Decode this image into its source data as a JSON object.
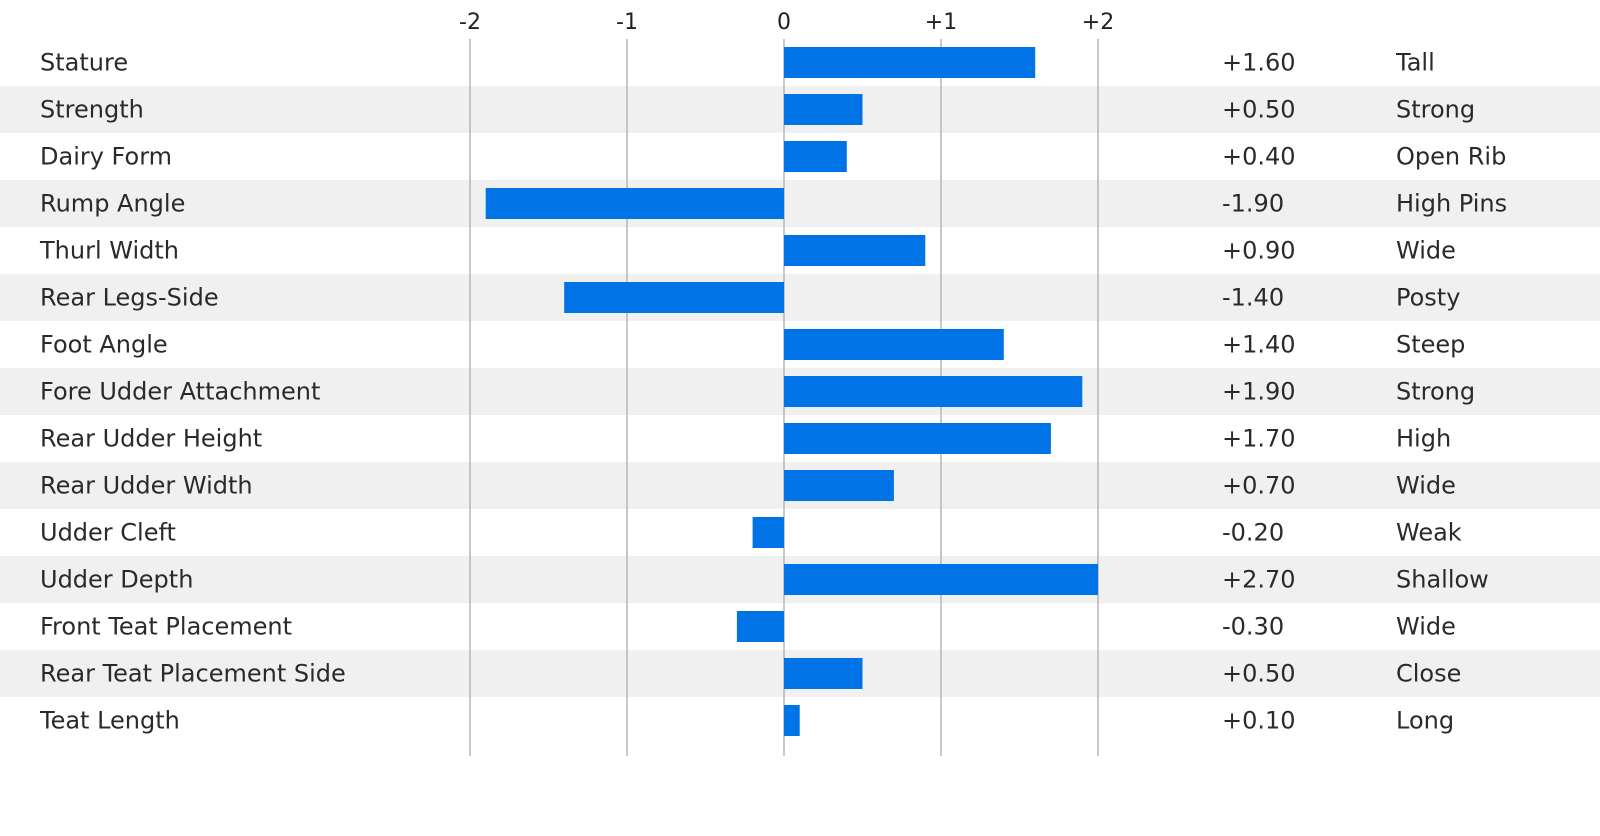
{
  "chart_data": {
    "type": "bar",
    "orientation": "horizontal",
    "x_ticks": [
      "-2",
      "-1",
      "0",
      "+1",
      "+2"
    ],
    "x_tick_values": [
      -2,
      -1,
      0,
      1,
      2
    ],
    "xlim": [
      -2,
      2
    ],
    "bar_color": "#0073e6",
    "alternate_row_color": "#f0f0f0",
    "grid": true,
    "title": "",
    "xlabel": "",
    "ylabel": "",
    "traits": [
      {
        "name": "Stature",
        "value": 1.6,
        "value_label": "+1.60",
        "descriptor": "Tall"
      },
      {
        "name": "Strength",
        "value": 0.5,
        "value_label": "+0.50",
        "descriptor": "Strong"
      },
      {
        "name": "Dairy Form",
        "value": 0.4,
        "value_label": "+0.40",
        "descriptor": "Open Rib"
      },
      {
        "name": "Rump Angle",
        "value": -1.9,
        "value_label": "-1.90",
        "descriptor": "High Pins"
      },
      {
        "name": "Thurl Width",
        "value": 0.9,
        "value_label": "+0.90",
        "descriptor": "Wide"
      },
      {
        "name": "Rear Legs-Side",
        "value": -1.4,
        "value_label": "-1.40",
        "descriptor": "Posty"
      },
      {
        "name": "Foot Angle",
        "value": 1.4,
        "value_label": "+1.40",
        "descriptor": "Steep"
      },
      {
        "name": "Fore Udder Attachment",
        "value": 1.9,
        "value_label": "+1.90",
        "descriptor": "Strong"
      },
      {
        "name": "Rear Udder Height",
        "value": 1.7,
        "value_label": "+1.70",
        "descriptor": "High"
      },
      {
        "name": "Rear Udder Width",
        "value": 0.7,
        "value_label": "+0.70",
        "descriptor": "Wide"
      },
      {
        "name": "Udder Cleft",
        "value": -0.2,
        "value_label": "-0.20",
        "descriptor": "Weak"
      },
      {
        "name": "Udder Depth",
        "value": 2.7,
        "value_label": "+2.70",
        "descriptor": "Shallow"
      },
      {
        "name": "Front Teat Placement",
        "value": -0.3,
        "value_label": "-0.30",
        "descriptor": "Wide"
      },
      {
        "name": "Rear Teat Placement Side",
        "value": 0.5,
        "value_label": "+0.50",
        "descriptor": "Close"
      },
      {
        "name": "Teat Length",
        "value": 0.1,
        "value_label": "+0.10",
        "descriptor": "Long"
      }
    ]
  }
}
